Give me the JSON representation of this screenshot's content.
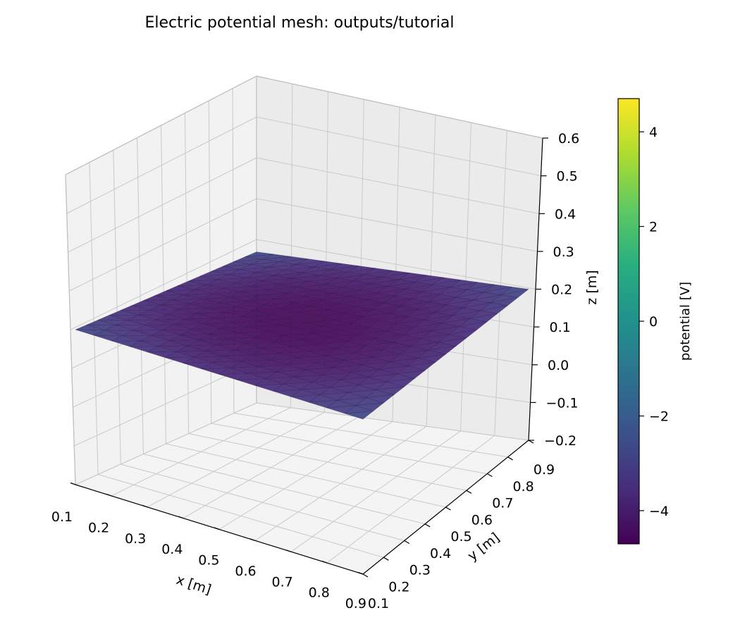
{
  "chart_data": {
    "type": "surface3d",
    "title": "Electric potential mesh: outputs/tutorial",
    "xlabel": "x [m]",
    "ylabel": "y [m]",
    "zlabel": "z [m]",
    "colorbar_label": "potential [V]",
    "colormap": "viridis",
    "xlim": [
      0.1,
      0.9
    ],
    "ylim": [
      0.1,
      0.9
    ],
    "zlim": [
      -0.2,
      0.6
    ],
    "xticks": [
      "0.1",
      "0.2",
      "0.3",
      "0.4",
      "0.5",
      "0.6",
      "0.7",
      "0.8",
      "0.9"
    ],
    "yticks": [
      "0.1",
      "0.2",
      "0.3",
      "0.4",
      "0.5",
      "0.6",
      "0.7",
      "0.8",
      "0.9"
    ],
    "zticks": [
      "−0.2",
      "−0.1",
      "0.0",
      "0.1",
      "0.2",
      "0.3",
      "0.4",
      "0.5",
      "0.6"
    ],
    "colorbar_ticks": [
      "−4",
      "−2",
      "0",
      "2",
      "4"
    ],
    "colorbar_range": [
      -4.7,
      4.7
    ],
    "surface": {
      "z": 0.2,
      "extent_x": [
        0.1,
        0.9
      ],
      "extent_y": [
        0.1,
        0.9
      ],
      "potential_center": -4.6,
      "potential_edge": -2.6
    }
  }
}
